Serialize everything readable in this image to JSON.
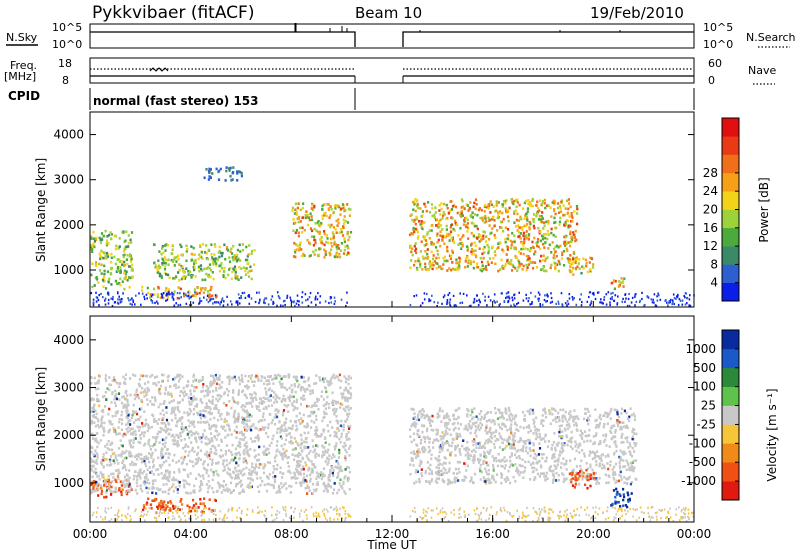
{
  "header": {
    "station": "Pykkvibaer (fitACF)",
    "beam": "Beam 10",
    "date": "19/Feb/2010"
  },
  "strips": {
    "nsky_label": "N.Sky",
    "nsearch_label": "N.Search",
    "nsky_ticks": [
      "10^5",
      "10^0"
    ],
    "nsearch_ticks": [
      "10^5",
      "10^0"
    ],
    "freq_label": [
      "Freq.",
      "[MHz]"
    ],
    "freq_ticks": [
      "18",
      "8"
    ],
    "nave_label": "Nave",
    "nave_ticks": [
      "60",
      "0"
    ],
    "cpid_label": "CPID",
    "cpid_text": "normal (fast stereo) 153"
  },
  "chart_data": [
    {
      "type": "heatmap",
      "panel": "power",
      "ylabel": "Slant Range [km]",
      "xlabel": "",
      "yticks": [
        "1000",
        "2000",
        "3000",
        "4000"
      ],
      "ylim": [
        180,
        4500
      ],
      "colorbar": {
        "label": "Power [dB]",
        "ticks": [
          "4",
          "8",
          "12",
          "16",
          "20",
          "24",
          "28"
        ],
        "colors": [
          "#0a1ee8",
          "#2d5fd0",
          "#3a8a6a",
          "#4caa3c",
          "#9ed23a",
          "#f5d21a",
          "#f5a018",
          "#f0701a",
          "#e83a14",
          "#e01010"
        ]
      },
      "data_gap_ut": [
        "10:20",
        "12:40"
      ],
      "echo_regions": [
        {
          "start_ut": "00:00",
          "end_ut": "01:40",
          "range_km": [
            600,
            1900
          ],
          "peak_db": 20
        },
        {
          "start_ut": "02:00",
          "end_ut": "05:00",
          "range_km": [
            400,
            650
          ],
          "peak_db": 28
        },
        {
          "start_ut": "02:30",
          "end_ut": "06:30",
          "range_km": [
            800,
            1600
          ],
          "peak_db": 20
        },
        {
          "start_ut": "04:30",
          "end_ut": "06:00",
          "range_km": [
            3000,
            3300
          ],
          "peak_db": 8
        },
        {
          "start_ut": "08:00",
          "end_ut": "10:20",
          "range_km": [
            1300,
            2500
          ],
          "peak_db": 28
        },
        {
          "start_ut": "12:40",
          "end_ut": "19:20",
          "range_km": [
            1000,
            2600
          ],
          "peak_db": 28
        },
        {
          "start_ut": "19:00",
          "end_ut": "20:00",
          "range_km": [
            900,
            1300
          ],
          "peak_db": 24
        },
        {
          "start_ut": "20:40",
          "end_ut": "21:20",
          "range_km": [
            600,
            900
          ],
          "peak_db": 28
        }
      ]
    },
    {
      "type": "heatmap",
      "panel": "velocity",
      "ylabel": "Slant Range [km]",
      "xlabel": "Time UT",
      "xticks": [
        "00:00",
        "04:00",
        "08:00",
        "12:00",
        "16:00",
        "20:00",
        "00:00"
      ],
      "yticks": [
        "1000",
        "2000",
        "3000",
        "4000"
      ],
      "ylim": [
        180,
        4500
      ],
      "colorbar": {
        "label": "Velocity [m s⁻¹]",
        "ticks": [
          "1000",
          "500",
          "100",
          "25",
          "-25",
          "-100",
          "-500",
          "-1000"
        ],
        "colors": [
          "#0a2aa0",
          "#1a5ac8",
          "#2a8a3a",
          "#5fc24a",
          "#c8c8c8",
          "#f5c53a",
          "#f08a18",
          "#f05014",
          "#e01a10"
        ]
      },
      "data_gap_ut": [
        "10:20",
        "12:40"
      ],
      "echo_regions": [
        {
          "start_ut": "00:00",
          "end_ut": "01:40",
          "range_km": [
            700,
            1100
          ],
          "velocity": -500
        },
        {
          "start_ut": "02:00",
          "end_ut": "05:00",
          "range_km": [
            400,
            700
          ],
          "velocity": -500
        },
        {
          "start_ut": "00:00",
          "end_ut": "10:20",
          "range_km": [
            800,
            3300
          ],
          "velocity": 0
        },
        {
          "start_ut": "12:40",
          "end_ut": "21:40",
          "range_km": [
            1000,
            2600
          ],
          "velocity": 0
        },
        {
          "start_ut": "19:00",
          "end_ut": "20:00",
          "range_km": [
            900,
            1300
          ],
          "velocity": -500
        },
        {
          "start_ut": "20:40",
          "end_ut": "21:30",
          "range_km": [
            500,
            900
          ],
          "velocity": 1000
        }
      ]
    }
  ]
}
